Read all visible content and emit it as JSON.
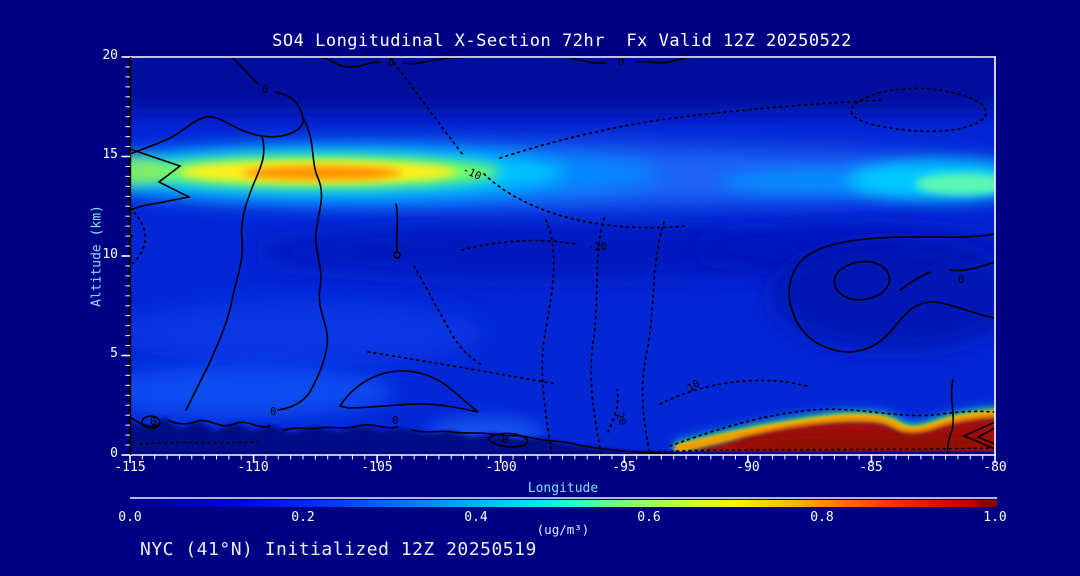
{
  "chart_data": {
    "type": "heatmap",
    "title": "SO4 Longitudinal X-Section 72hr  Fx Valid 12Z 20250522",
    "annotation": "NYC (41°N) Initialized 12Z 20250519",
    "xlabel": "Longitude",
    "ylabel": "Altitude (km)",
    "xlim": [
      -115,
      -80
    ],
    "ylim": [
      0,
      20
    ],
    "x_ticks": [
      "-115",
      "-110",
      "-105",
      "-100",
      "-95",
      "-90",
      "-85",
      "-80"
    ],
    "y_ticks": [
      "0",
      "5",
      "10",
      "15",
      "20"
    ],
    "grid": false,
    "colorbar": {
      "label": "(ug/m³)",
      "min": 0,
      "max": 1,
      "ticks": [
        "0.0",
        "0.2",
        "0.4",
        "0.6",
        "0.8",
        "1.0"
      ],
      "palette": [
        "#000089",
        "#0000B4",
        "#0009E8",
        "#0030FF",
        "#0070FF",
        "#00ACFF",
        "#00E0EE",
        "#2FFFC4",
        "#7EFF72",
        "#C6FF2E",
        "#FFF400",
        "#FFB000",
        "#FF6800",
        "#F22800",
        "#D40A00",
        "#8B0000"
      ]
    },
    "contour_labels": [
      {
        "value": "0"
      },
      {
        "value": "0"
      },
      {
        "value": "0"
      },
      {
        "value": "-10"
      },
      {
        "value": "10"
      },
      {
        "value": "-20"
      },
      {
        "value": "0"
      },
      {
        "value": "0"
      },
      {
        "value": "0"
      },
      {
        "value": "0"
      },
      {
        "value": "0"
      },
      {
        "value": "10"
      },
      {
        "value": "20"
      }
    ],
    "features": [
      {
        "name": "elevated plume layer (west)",
        "lon_range": [
          -115,
          -96
        ],
        "alt_range_km": [
          12.5,
          15.5
        ],
        "peak_ug_m3": 0.85,
        "peak_lon": -107.5,
        "peak_alt_km": 13.8
      },
      {
        "name": "elevated layer (east)",
        "lon_range": [
          -86,
          -80
        ],
        "alt_range_km": [
          12.5,
          15
        ],
        "peak_ug_m3": 0.55
      },
      {
        "name": "boundary-layer maximum (east)",
        "lon_range": [
          -92,
          -80
        ],
        "alt_range_km": [
          0,
          1.8
        ],
        "peak_ug_m3": 1.0
      },
      {
        "name": "clean surface layer (west)",
        "lon_range": [
          -115,
          -95
        ],
        "alt_range_km": [
          0,
          1.5
        ],
        "value_ug_m3": 0.05
      },
      {
        "name": "free-troposphere background",
        "value_ug_m3": 0.15
      }
    ]
  },
  "colors": {
    "background": "#000085",
    "title_text": "#FFFFFF",
    "axis_label_text": "#7FE3FF",
    "tick_label_text": "#FFFFFF",
    "contour_line": "#000000",
    "surface_max": "#A20E08",
    "plume_core": "#FF9000"
  }
}
